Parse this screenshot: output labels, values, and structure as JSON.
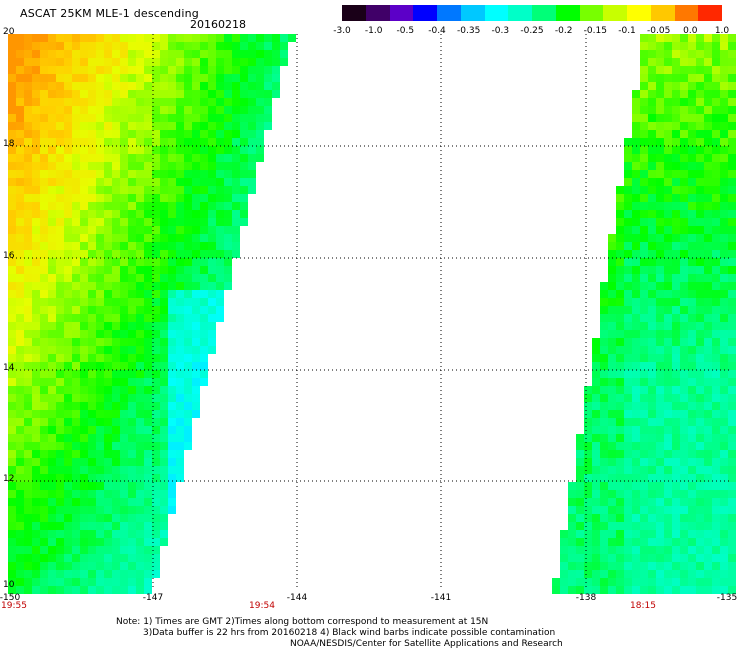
{
  "header": {
    "title": "ASCAT 25KM MLE-1 descending",
    "date": "20160218"
  },
  "colorbar": {
    "colors": [
      "#1a0018",
      "#400068",
      "#5c00c8",
      "#0000ff",
      "#0078ff",
      "#00c8ff",
      "#00ffff",
      "#00ffc8",
      "#00ff78",
      "#00ff00",
      "#78ff00",
      "#c8ff00",
      "#ffff00",
      "#ffc800",
      "#ff7800",
      "#ff2800"
    ],
    "labels": [
      "-3.0",
      "-1.0",
      "-0.5",
      "-0.4",
      "-0.35",
      "-0.3",
      "-0.25",
      "-0.2",
      "-0.15",
      "-0.1",
      "-0.05",
      "0.0",
      "1.0"
    ]
  },
  "axes": {
    "x_ticks": [
      "-150",
      "-147",
      "-144",
      "-141",
      "-138",
      "-135"
    ],
    "y_ticks": [
      "20",
      "18",
      "16",
      "14",
      "12",
      "10"
    ],
    "time_labels": [
      "19:55",
      "19:54",
      "18:15"
    ]
  },
  "notes": {
    "line1": "Note: 1) Times are GMT 2)Times along bottom correspond to measurement at 15N",
    "line2": "3)Data buffer is 22 hrs from 20160218 4) Black wind barbs indicate possible contamination",
    "line3": "NOAA/NESDIS/Center for Satellite Applications and Research"
  }
}
